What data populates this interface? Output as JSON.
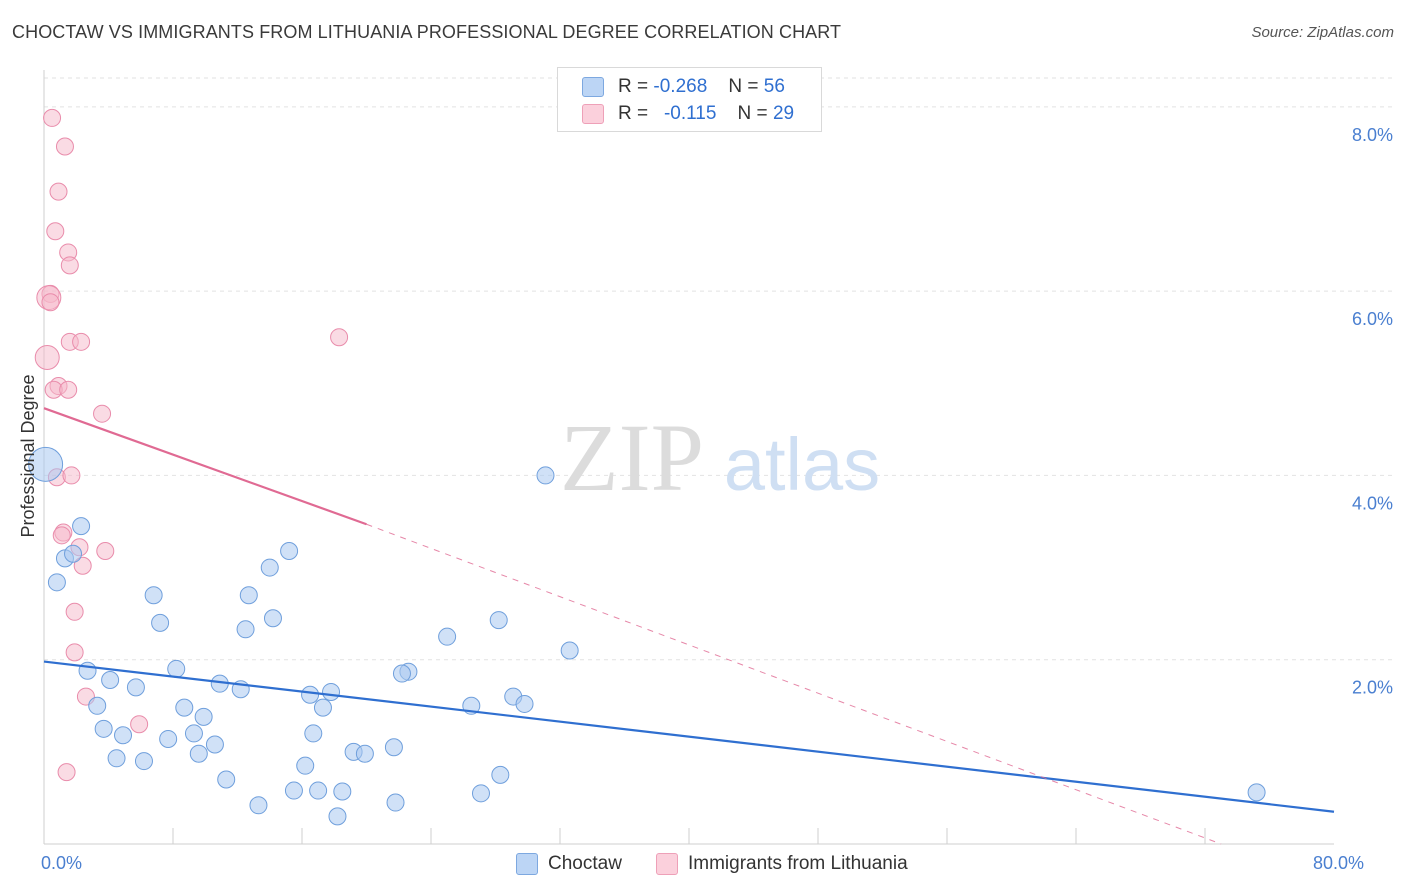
{
  "header": {
    "title": "CHOCTAW VS IMMIGRANTS FROM LITHUANIA PROFESSIONAL DEGREE CORRELATION CHART",
    "source": "Source: ZipAtlas.com"
  },
  "watermark": {
    "zip": "ZIP",
    "atlas": "atlas"
  },
  "legend": {
    "rows": [
      {
        "r_label": "R =",
        "r_value": "-0.268",
        "n_label": "N =",
        "n_value": "56",
        "color": "#a9c8f0"
      },
      {
        "r_label": "R =",
        "r_value": "-0.115",
        "n_label": "N =",
        "n_value": "29",
        "color": "#f5b8ca"
      }
    ]
  },
  "bottom_legend": {
    "items": [
      {
        "label": "Choctaw",
        "color": "#a9c8f0"
      },
      {
        "label": "Immigrants from Lithuania",
        "color": "#f5b8ca"
      }
    ]
  },
  "colors": {
    "choctaw_fill": "rgba(169,200,240,0.55)",
    "choctaw_stroke": "#6f9fdc",
    "choctaw_line": "#2f6fd0",
    "lith_fill": "rgba(245,184,202,0.5)",
    "lith_stroke": "#e98cab",
    "lith_line": "#e06a93",
    "grid": "#e2e2e2",
    "axis_label": "#4a7fd0"
  },
  "chart_data": {
    "type": "scatter",
    "title": "CHOCTAW VS IMMIGRANTS FROM LITHUANIA PROFESSIONAL DEGREE CORRELATION CHART",
    "xlabel": "",
    "ylabel": "Professional Degree",
    "xlim": [
      0,
      80
    ],
    "ylim": [
      0,
      8.4
    ],
    "x_tick_labels": [
      {
        "value": 0,
        "label": "0.0%"
      },
      {
        "value": 80,
        "label": "80.0%"
      }
    ],
    "y_tick_labels": [
      {
        "value": 2,
        "label": "2.0%"
      },
      {
        "value": 4,
        "label": "4.0%"
      },
      {
        "value": 6,
        "label": "6.0%"
      },
      {
        "value": 8,
        "label": "8.0%"
      }
    ],
    "x_minor_ticks": [
      8,
      16,
      24,
      32,
      40,
      48,
      56,
      64,
      72
    ],
    "grid": true,
    "series": [
      {
        "name": "Choctaw",
        "r": -0.268,
        "n": 56,
        "trend": {
          "x0": 0,
          "y0": 1.98,
          "x1": 80,
          "y1": 0.35
        },
        "points": [
          [
            0.1,
            4.12
          ],
          [
            2.3,
            3.45
          ],
          [
            1.3,
            3.1
          ],
          [
            0.8,
            2.84
          ],
          [
            1.8,
            3.15
          ],
          [
            6.8,
            2.7
          ],
          [
            7.2,
            2.4
          ],
          [
            8.2,
            1.9
          ],
          [
            2.7,
            1.88
          ],
          [
            4.1,
            1.78
          ],
          [
            5.7,
            1.7
          ],
          [
            3.3,
            1.5
          ],
          [
            3.7,
            1.25
          ],
          [
            4.9,
            1.18
          ],
          [
            4.5,
            0.93
          ],
          [
            6.2,
            0.9
          ],
          [
            7.7,
            1.14
          ],
          [
            8.7,
            1.48
          ],
          [
            9.3,
            1.2
          ],
          [
            9.9,
            1.38
          ],
          [
            9.6,
            0.98
          ],
          [
            10.6,
            1.08
          ],
          [
            10.9,
            1.74
          ],
          [
            12.2,
            1.68
          ],
          [
            11.3,
            0.7
          ],
          [
            12.7,
            2.7
          ],
          [
            12.5,
            2.33
          ],
          [
            14.2,
            2.45
          ],
          [
            14.0,
            3.0
          ],
          [
            15.2,
            3.18
          ],
          [
            16.5,
            1.62
          ],
          [
            16.7,
            1.2
          ],
          [
            17.8,
            1.65
          ],
          [
            17.3,
            1.48
          ],
          [
            15.5,
            0.58
          ],
          [
            16.2,
            0.85
          ],
          [
            17.0,
            0.58
          ],
          [
            13.3,
            0.42
          ],
          [
            19.2,
            1.0
          ],
          [
            19.9,
            0.98
          ],
          [
            18.5,
            0.57
          ],
          [
            18.2,
            0.3
          ],
          [
            21.7,
            1.05
          ],
          [
            22.6,
            1.87
          ],
          [
            22.2,
            1.85
          ],
          [
            21.8,
            0.45
          ],
          [
            25.0,
            2.25
          ],
          [
            26.5,
            1.5
          ],
          [
            28.2,
            2.43
          ],
          [
            29.1,
            1.6
          ],
          [
            28.3,
            0.75
          ],
          [
            29.8,
            1.52
          ],
          [
            31.1,
            4.0
          ],
          [
            32.6,
            2.1
          ],
          [
            27.1,
            0.55
          ],
          [
            75.2,
            0.56
          ]
        ]
      },
      {
        "name": "Immigrants from Lithuania",
        "r": -0.115,
        "n": 29,
        "trend": {
          "x0": 0,
          "y0": 4.73,
          "x1": 20,
          "y1": 3.47,
          "dash_x1": 73,
          "dash_y1": 0.0
        },
        "points": [
          [
            0.5,
            7.88
          ],
          [
            1.3,
            7.57
          ],
          [
            0.9,
            7.08
          ],
          [
            0.7,
            6.65
          ],
          [
            1.5,
            6.42
          ],
          [
            1.6,
            6.28
          ],
          [
            0.4,
            5.97
          ],
          [
            0.3,
            5.93
          ],
          [
            0.4,
            5.88
          ],
          [
            1.6,
            5.45
          ],
          [
            2.3,
            5.45
          ],
          [
            18.3,
            5.5
          ],
          [
            0.2,
            5.28
          ],
          [
            0.9,
            4.97
          ],
          [
            0.6,
            4.93
          ],
          [
            1.5,
            4.93
          ],
          [
            3.6,
            4.67
          ],
          [
            0.8,
            3.98
          ],
          [
            1.7,
            4.0
          ],
          [
            1.2,
            3.38
          ],
          [
            1.1,
            3.35
          ],
          [
            2.2,
            3.22
          ],
          [
            3.8,
            3.18
          ],
          [
            2.4,
            3.02
          ],
          [
            1.9,
            2.52
          ],
          [
            1.9,
            2.08
          ],
          [
            2.6,
            1.6
          ],
          [
            5.9,
            1.3
          ],
          [
            1.4,
            0.78
          ]
        ]
      }
    ]
  }
}
